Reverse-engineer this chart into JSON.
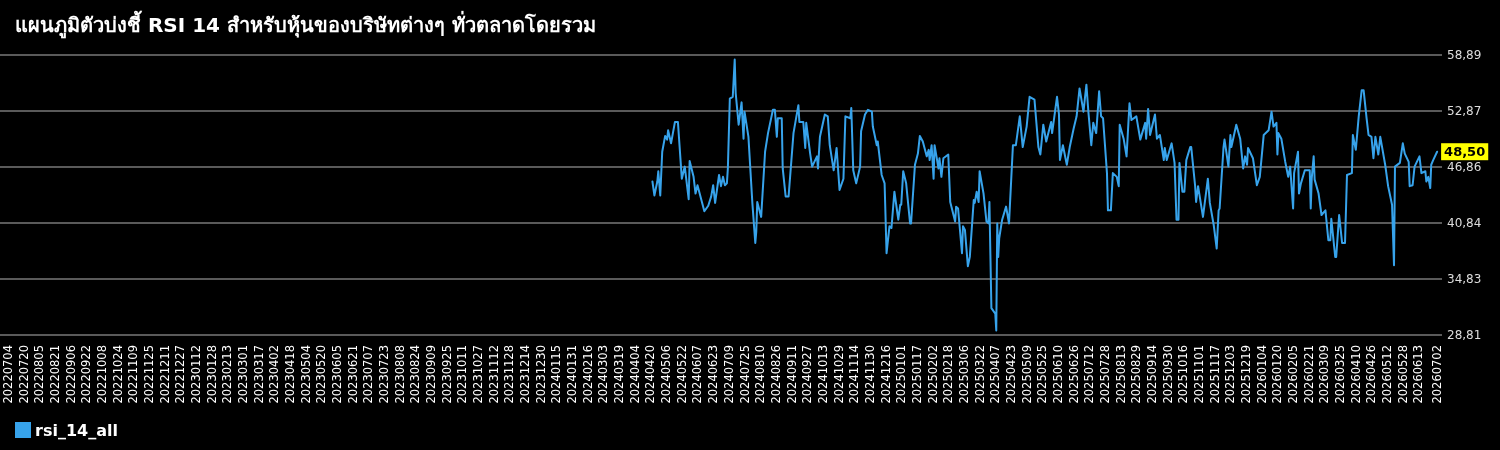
{
  "chart_data": {
    "type": "line",
    "title": "แผนภูมิตัวบ่งชี้ RSI 14 สําหรับหุ้นของบริษัทต่างๆ ทั่วตลาดโดยรวม",
    "xlim": [
      "2022-06-26",
      "2026-07-07"
    ],
    "xticks": [
      {
        "value": "2022-07-04",
        "label": "20220704"
      },
      {
        "value": "2022-07-20",
        "label": "20220720"
      },
      {
        "value": "2022-08-05",
        "label": "20220805"
      },
      {
        "value": "2022-08-21",
        "label": "20220821"
      },
      {
        "value": "2022-09-06",
        "label": "20220906"
      },
      {
        "value": "2022-09-22",
        "label": "20220922"
      },
      {
        "value": "2022-10-08",
        "label": "20221008"
      },
      {
        "value": "2022-10-24",
        "label": "20221024"
      },
      {
        "value": "2022-11-09",
        "label": "20221109"
      },
      {
        "value": "2022-11-25",
        "label": "20221125"
      },
      {
        "value": "2022-12-11",
        "label": "20221211"
      },
      {
        "value": "2022-12-27",
        "label": "20221227"
      },
      {
        "value": "2023-01-12",
        "label": "20230112"
      },
      {
        "value": "2023-01-28",
        "label": "20230128"
      },
      {
        "value": "2023-02-13",
        "label": "20230213"
      },
      {
        "value": "2023-03-01",
        "label": "20230301"
      },
      {
        "value": "2023-03-17",
        "label": "20230317"
      },
      {
        "value": "2023-04-02",
        "label": "20230402"
      },
      {
        "value": "2023-04-18",
        "label": "20230418"
      },
      {
        "value": "2023-05-04",
        "label": "20230504"
      },
      {
        "value": "2023-05-20",
        "label": "20230520"
      },
      {
        "value": "2023-06-05",
        "label": "20230605"
      },
      {
        "value": "2023-06-21",
        "label": "20230621"
      },
      {
        "value": "2023-07-07",
        "label": "20230707"
      },
      {
        "value": "2023-07-23",
        "label": "20230723"
      },
      {
        "value": "2023-08-08",
        "label": "20230808"
      },
      {
        "value": "2023-08-24",
        "label": "20230824"
      },
      {
        "value": "2023-09-09",
        "label": "20230909"
      },
      {
        "value": "2023-09-25",
        "label": "20230925"
      },
      {
        "value": "2023-10-11",
        "label": "20231011"
      },
      {
        "value": "2023-10-27",
        "label": "20231027"
      },
      {
        "value": "2023-11-12",
        "label": "20231112"
      },
      {
        "value": "2023-11-28",
        "label": "20231128"
      },
      {
        "value": "2023-12-14",
        "label": "20231214"
      },
      {
        "value": "2023-12-30",
        "label": "20231230"
      },
      {
        "value": "2024-01-15",
        "label": "20240115"
      },
      {
        "value": "2024-01-31",
        "label": "20240131"
      },
      {
        "value": "2024-02-16",
        "label": "20240216"
      },
      {
        "value": "2024-03-03",
        "label": "20240303"
      },
      {
        "value": "2024-03-19",
        "label": "20240319"
      },
      {
        "value": "2024-04-04",
        "label": "20240404"
      },
      {
        "value": "2024-04-20",
        "label": "20240420"
      },
      {
        "value": "2024-05-06",
        "label": "20240506"
      },
      {
        "value": "2024-05-22",
        "label": "20240522"
      },
      {
        "value": "2024-06-07",
        "label": "20240607"
      },
      {
        "value": "2024-06-23",
        "label": "20240623"
      },
      {
        "value": "2024-07-09",
        "label": "20240709"
      },
      {
        "value": "2024-07-25",
        "label": "20240725"
      },
      {
        "value": "2024-08-10",
        "label": "20240810"
      },
      {
        "value": "2024-08-26",
        "label": "20240826"
      },
      {
        "value": "2024-09-11",
        "label": "20240911"
      },
      {
        "value": "2024-09-27",
        "label": "20240927"
      },
      {
        "value": "2024-10-13",
        "label": "20241013"
      },
      {
        "value": "2024-10-29",
        "label": "20241029"
      },
      {
        "value": "2024-11-14",
        "label": "20241114"
      },
      {
        "value": "2024-11-30",
        "label": "20241130"
      },
      {
        "value": "2024-12-16",
        "label": "20241216"
      },
      {
        "value": "2025-01-01",
        "label": "20250101"
      },
      {
        "value": "2025-01-17",
        "label": "20250117"
      },
      {
        "value": "2025-02-02",
        "label": "20250202"
      },
      {
        "value": "2025-02-18",
        "label": "20250218"
      },
      {
        "value": "2025-03-06",
        "label": "20250306"
      },
      {
        "value": "2025-03-22",
        "label": "20250322"
      },
      {
        "value": "2025-04-07",
        "label": "20250407"
      },
      {
        "value": "2025-04-23",
        "label": "20250423"
      },
      {
        "value": "2025-05-09",
        "label": "20250509"
      },
      {
        "value": "2025-05-25",
        "label": "20250525"
      },
      {
        "value": "2025-06-10",
        "label": "20250610"
      },
      {
        "value": "2025-06-26",
        "label": "20250626"
      },
      {
        "value": "2025-07-12",
        "label": "20250712"
      },
      {
        "value": "2025-07-28",
        "label": "20250728"
      },
      {
        "value": "2025-08-13",
        "label": "20250813"
      },
      {
        "value": "2025-08-29",
        "label": "20250829"
      },
      {
        "value": "2025-09-14",
        "label": "20250914"
      },
      {
        "value": "2025-09-30",
        "label": "20250930"
      },
      {
        "value": "2025-10-16",
        "label": "20251016"
      },
      {
        "value": "2025-11-01",
        "label": "20251101"
      },
      {
        "value": "2025-11-17",
        "label": "20251117"
      },
      {
        "value": "2025-12-03",
        "label": "20251203"
      },
      {
        "value": "2025-12-19",
        "label": "20251219"
      },
      {
        "value": "2026-01-04",
        "label": "20260104"
      },
      {
        "value": "2026-01-20",
        "label": "20260120"
      },
      {
        "value": "2026-02-05",
        "label": "20260205"
      },
      {
        "value": "2026-02-21",
        "label": "20260221"
      },
      {
        "value": "2026-03-09",
        "label": "20260309"
      },
      {
        "value": "2026-03-25",
        "label": "20260325"
      },
      {
        "value": "2026-04-10",
        "label": "20260410"
      },
      {
        "value": "2026-04-26",
        "label": "20260426"
      },
      {
        "value": "2026-05-12",
        "label": "20260512"
      },
      {
        "value": "2026-05-28",
        "label": "20260528"
      },
      {
        "value": "2026-06-13",
        "label": "20260613"
      },
      {
        "value": "2026-07-02",
        "label": "20260702"
      }
    ],
    "ylim": [
      28.81,
      58.89
    ],
    "yticks": [
      {
        "value": 28.81,
        "label": "28,81"
      },
      {
        "value": 34.83,
        "label": "34,83"
      },
      {
        "value": 40.84,
        "label": "40,84"
      },
      {
        "value": 46.86,
        "label": "46,86"
      },
      {
        "value": 52.87,
        "label": "52,87"
      },
      {
        "value": 58.89,
        "label": "58,89"
      }
    ],
    "grid": "y",
    "legend": "bottom left",
    "x": [
      "2024-04-22",
      "2024-04-24",
      "2024-04-27",
      "2024-04-28",
      "2024-04-30",
      "2024-05-02",
      "2024-05-05",
      "2024-05-07",
      "2024-05-08",
      "2024-05-11",
      "2024-05-15",
      "2024-05-18",
      "2024-05-22",
      "2024-05-25",
      "2024-05-29",
      "2024-05-30",
      "2024-06-03",
      "2024-06-05",
      "2024-06-07",
      "2024-06-14",
      "2024-06-18",
      "2024-06-21",
      "2024-06-23",
      "2024-06-25",
      "2024-06-29",
      "2024-07-01",
      "2024-07-03",
      "2024-07-05",
      "2024-07-07",
      "2024-07-08",
      "2024-07-10",
      "2024-07-13",
      "2024-07-15",
      "2024-07-16",
      "2024-07-19",
      "2024-07-22",
      "2024-07-24",
      "2024-07-25",
      "2024-07-29",
      "2024-08-02",
      "2024-08-05",
      "2024-08-06",
      "2024-08-07",
      "2024-08-11",
      "2024-08-15",
      "2024-08-18",
      "2024-08-23",
      "2024-08-25",
      "2024-08-27",
      "2024-08-28",
      "2024-09-01",
      "2024-09-02",
      "2024-09-05",
      "2024-09-08",
      "2024-09-13",
      "2024-09-18",
      "2024-09-19",
      "2024-09-23",
      "2024-09-25",
      "2024-09-26",
      "2024-09-30",
      "2024-10-02",
      "2024-10-07",
      "2024-10-08",
      "2024-10-10",
      "2024-10-15",
      "2024-10-18",
      "2024-10-20",
      "2024-10-24",
      "2024-10-27",
      "2024-10-30",
      "2024-11-03",
      "2024-11-05",
      "2024-11-10",
      "2024-11-11",
      "2024-11-13",
      "2024-11-16",
      "2024-11-20",
      "2024-11-21",
      "2024-11-25",
      "2024-11-28",
      "2024-12-02",
      "2024-12-03",
      "2024-12-07",
      "2024-12-08",
      "2024-12-12",
      "2024-12-15",
      "2024-12-17",
      "2024-12-20",
      "2024-12-22",
      "2024-12-25",
      "2024-12-29",
      "2024-12-31",
      "2025-01-01",
      "2025-01-03",
      "2025-01-06",
      "2025-01-10",
      "2025-01-11",
      "2025-01-15",
      "2025-01-18",
      "2025-01-20",
      "2025-01-23",
      "2025-01-27",
      "2025-01-29",
      "2025-01-30",
      "2025-02-01",
      "2025-02-03",
      "2025-02-04",
      "2025-02-08",
      "2025-02-09",
      "2025-02-11",
      "2025-02-13",
      "2025-02-18",
      "2025-02-20",
      "2025-02-25",
      "2025-02-26",
      "2025-02-28",
      "2025-03-04",
      "2025-03-05",
      "2025-03-07",
      "2025-03-10",
      "2025-03-12",
      "2025-03-16",
      "2025-03-17",
      "2025-03-19",
      "2025-03-21",
      "2025-03-22",
      "2025-03-26",
      "2025-03-29",
      "2025-03-31",
      "2025-04-01",
      "2025-04-03",
      "2025-04-07",
      "2025-04-08",
      "2025-04-09",
      "2025-04-10",
      "2025-04-11",
      "2025-04-14",
      "2025-04-18",
      "2025-04-21",
      "2025-04-25",
      "2025-04-28",
      "2025-05-02",
      "2025-05-05",
      "2025-05-09",
      "2025-05-12",
      "2025-05-17",
      "2025-05-21",
      "2025-05-23",
      "2025-05-26",
      "2025-05-29",
      "2025-06-03",
      "2025-06-04",
      "2025-06-09",
      "2025-06-11",
      "2025-06-12",
      "2025-06-15",
      "2025-06-19",
      "2025-06-22",
      "2025-06-26",
      "2025-06-29",
      "2025-07-02",
      "2025-07-06",
      "2025-07-09",
      "2025-07-11",
      "2025-07-14",
      "2025-07-16",
      "2025-07-19",
      "2025-07-22",
      "2025-07-24",
      "2025-07-26",
      "2025-07-30",
      "2025-07-31",
      "2025-08-03",
      "2025-08-05",
      "2025-08-09",
      "2025-08-11",
      "2025-08-12",
      "2025-08-16",
      "2025-08-19",
      "2025-08-22",
      "2025-08-24",
      "2025-08-29",
      "2025-09-02",
      "2025-09-07",
      "2025-09-08",
      "2025-09-10",
      "2025-09-12",
      "2025-09-17",
      "2025-09-19",
      "2025-09-22",
      "2025-09-26",
      "2025-09-27",
      "2025-09-29",
      "2025-10-04",
      "2025-10-07",
      "2025-10-09",
      "2025-10-11",
      "2025-10-12",
      "2025-10-15",
      "2025-10-17",
      "2025-10-19",
      "2025-10-23",
      "2025-10-24",
      "2025-10-28",
      "2025-10-29",
      "2025-10-31",
      "2025-11-05",
      "2025-11-10",
      "2025-11-12",
      "2025-11-16",
      "2025-11-19",
      "2025-11-21",
      "2025-11-22",
      "2025-11-26",
      "2025-11-27",
      "2025-12-01",
      "2025-12-03",
      "2025-12-04",
      "2025-12-09",
      "2025-12-13",
      "2025-12-16",
      "2025-12-18",
      "2025-12-20",
      "2025-12-21",
      "2025-12-26",
      "2025-12-30",
      "2026-01-02",
      "2026-01-06",
      "2026-01-11",
      "2026-01-14",
      "2026-01-16",
      "2026-01-19",
      "2026-01-20",
      "2026-01-21",
      "2026-01-24",
      "2026-01-28",
      "2026-01-31",
      "2026-02-02",
      "2026-02-05",
      "2026-02-06",
      "2026-02-10",
      "2026-02-11",
      "2026-02-13",
      "2026-02-17",
      "2026-02-22",
      "2026-02-23",
      "2026-02-24",
      "2026-02-26",
      "2026-02-27",
      "2026-03-03",
      "2026-03-06",
      "2026-03-10",
      "2026-03-13",
      "2026-03-15",
      "2026-03-16",
      "2026-03-20",
      "2026-03-21",
      "2026-03-24",
      "2026-03-27",
      "2026-03-30",
      "2026-04-01",
      "2026-04-06",
      "2026-04-07",
      "2026-04-10",
      "2026-04-13",
      "2026-04-16",
      "2026-04-18",
      "2026-04-21",
      "2026-04-23",
      "2026-04-26",
      "2026-04-28",
      "2026-04-30",
      "2026-05-03",
      "2026-05-05",
      "2026-05-10",
      "2026-05-13",
      "2026-05-17",
      "2026-05-19",
      "2026-05-20",
      "2026-05-25",
      "2026-05-28",
      "2026-05-30",
      "2026-06-03",
      "2026-06-04",
      "2026-06-07",
      "2026-06-09",
      "2026-06-14",
      "2026-06-16",
      "2026-06-20",
      "2026-06-21",
      "2026-06-23",
      "2026-06-25",
      "2026-06-26",
      "2026-06-28",
      "2026-07-02"
    ],
    "series": [
      {
        "name": "rsi_14_all",
        "color": "#37a3eb",
        "values": [
          45.3,
          43.8,
          45.3,
          46.4,
          43.8,
          48.5,
          50.2,
          49.8,
          50.8,
          49.4,
          51.7,
          51.7,
          45.6,
          46.9,
          43.4,
          47.5,
          45.8,
          44.0,
          44.9,
          42.1,
          42.7,
          43.7,
          44.9,
          43.0,
          46.0,
          44.8,
          45.8,
          44.9,
          45.1,
          46.7,
          54.2,
          54.4,
          58.4,
          54.8,
          51.4,
          53.8,
          49.9,
          52.8,
          50.1,
          43.0,
          38.7,
          39.9,
          43.1,
          41.5,
          48.5,
          50.5,
          53.0,
          53.0,
          50.1,
          52.1,
          52.1,
          46.7,
          43.7,
          43.7,
          50.5,
          53.5,
          51.7,
          51.7,
          48.9,
          51.6,
          48.3,
          46.9,
          48.0,
          46.7,
          50.1,
          52.5,
          52.3,
          49.2,
          46.5,
          48.9,
          44.4,
          45.6,
          52.3,
          52.1,
          53.2,
          46.5,
          45.1,
          46.9,
          50.7,
          52.5,
          53.0,
          52.8,
          51.2,
          49.2,
          49.6,
          46.0,
          45.1,
          37.6,
          40.5,
          40.3,
          44.2,
          41.2,
          42.8,
          42.8,
          46.4,
          45.1,
          40.8,
          40.8,
          47.1,
          48.3,
          50.2,
          49.6,
          48.0,
          48.7,
          47.6,
          49.2,
          45.6,
          49.2,
          46.7,
          47.8,
          45.8,
          47.8,
          48.2,
          43.1,
          41.0,
          42.6,
          42.4,
          37.6,
          40.5,
          40.1,
          36.2,
          37.2,
          43.3,
          43.0,
          44.2,
          43.1,
          46.4,
          44.0,
          41.0,
          40.8,
          43.1,
          31.7,
          31.1,
          29.3,
          40.8,
          37.2,
          39.2,
          41.2,
          42.6,
          40.8,
          49.2,
          49.2,
          52.3,
          49.0,
          51.2,
          54.4,
          54.1,
          49.0,
          48.2,
          51.4,
          49.6,
          51.7,
          50.5,
          54.4,
          52.5,
          47.6,
          49.2,
          47.1,
          49.0,
          51.0,
          52.3,
          55.3,
          52.8,
          55.7,
          52.8,
          49.2,
          51.6,
          50.5,
          55.0,
          52.3,
          52.1,
          46.2,
          42.2,
          42.2,
          46.2,
          45.8,
          44.8,
          51.4,
          49.9,
          48.0,
          53.7,
          51.9,
          52.3,
          49.8,
          51.6,
          49.9,
          53.1,
          50.3,
          52.5,
          49.9,
          50.3,
          47.6,
          48.9,
          47.6,
          49.4,
          47.3,
          41.2,
          41.2,
          47.3,
          44.2,
          44.2,
          47.6,
          49.0,
          49.0,
          44.8,
          43.1,
          44.8,
          41.5,
          45.6,
          43.0,
          40.6,
          38.1,
          42.2,
          42.4,
          49.0,
          49.8,
          46.9,
          50.3,
          49.0,
          51.4,
          49.9,
          46.7,
          48.0,
          47.1,
          48.9,
          47.8,
          44.9,
          45.8,
          50.3,
          50.8,
          52.8,
          51.2,
          51.6,
          48.2,
          50.5,
          49.9,
          47.4,
          45.8,
          46.9,
          42.4,
          46.2,
          48.5,
          44.0,
          45.1,
          46.5,
          46.5,
          42.4,
          45.6,
          48.0,
          45.5,
          44.0,
          41.7,
          42.2,
          39.0,
          39.0,
          41.3,
          37.2,
          37.2,
          41.7,
          38.7,
          38.7,
          46.0,
          46.2,
          50.3,
          48.7,
          52.3,
          55.1,
          55.1,
          52.1,
          50.3,
          50.1,
          47.8,
          50.1,
          48.2,
          50.1,
          47.1,
          44.8,
          42.8,
          36.3,
          46.9,
          47.3,
          49.4,
          48.3,
          47.4,
          44.8,
          44.9,
          46.9,
          48.0,
          46.2,
          46.4,
          45.3,
          45.8,
          44.6,
          47.1,
          47.6,
          48.5
        ]
      }
    ],
    "annotations": [
      {
        "text": "48,50",
        "x": "2026-07-02",
        "y": 48.5
      }
    ]
  }
}
